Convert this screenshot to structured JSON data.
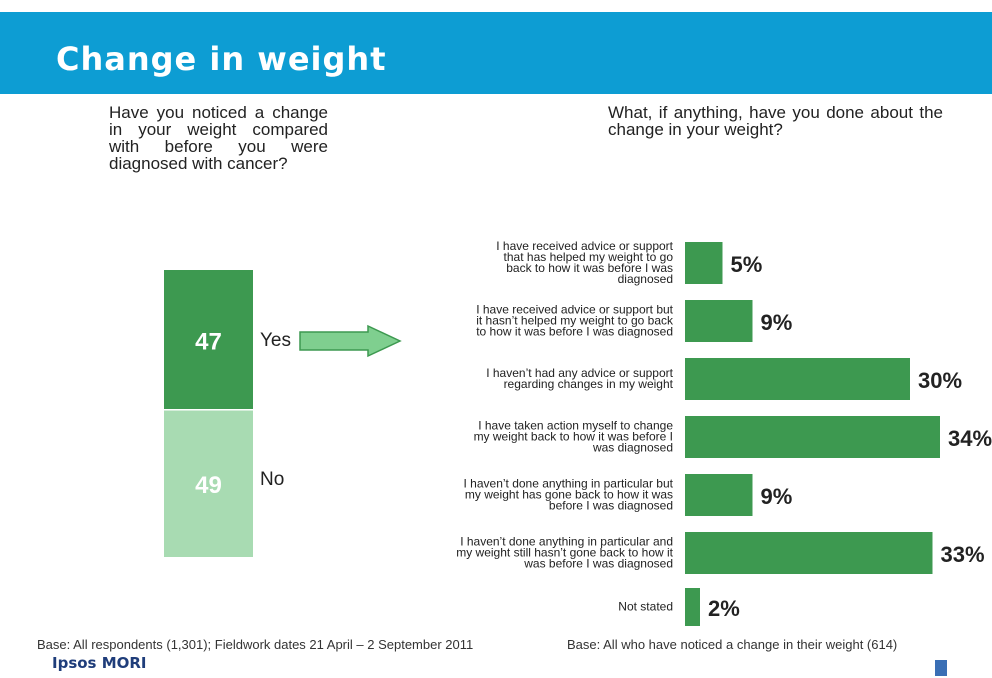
{
  "header": {
    "title": "Change in weight"
  },
  "questions": {
    "left": "Have you noticed a change in your weight compared with before you were diagnosed with cancer?",
    "right": "What, if anything, have you done about the change in your weight?"
  },
  "footer": {
    "base_left": "Base:  All respondents (1,301); Fieldwork dates 21 April – 2 September 2011",
    "base_right": "Base:  All who have noticed a change in their weight (614)",
    "logo": "Ipsos MORI"
  },
  "chart_data": [
    {
      "type": "bar",
      "orientation": "stacked-vertical",
      "categories": [
        "Yes",
        "No"
      ],
      "values": [
        47,
        49
      ],
      "colors": [
        "#3d9950",
        "#a8dbb2"
      ]
    },
    {
      "type": "bar",
      "orientation": "horizontal",
      "categories": [
        "I have received advice or support that has helped my weight to go back to how it was before I was diagnosed",
        "I have received advice or support but it hasn’t helped my weight to go back to how it was before I was diagnosed",
        "I haven’t had any advice or support regarding changes in my weight",
        "I have taken action myself to change my weight back to how it was before I was diagnosed",
        "I haven’t done anything in particular but my weight has gone back to how it was before I was diagnosed",
        "I haven’t done anything in particular and my weight still hasn’t gone back to how it was before I was diagnosed",
        "Not stated"
      ],
      "values": [
        5,
        9,
        30,
        34,
        9,
        33,
        2
      ],
      "value_labels": [
        "5%",
        "9%",
        "30%",
        "34%",
        "9%",
        "33%",
        "2%"
      ],
      "color": "#3d9950"
    }
  ]
}
